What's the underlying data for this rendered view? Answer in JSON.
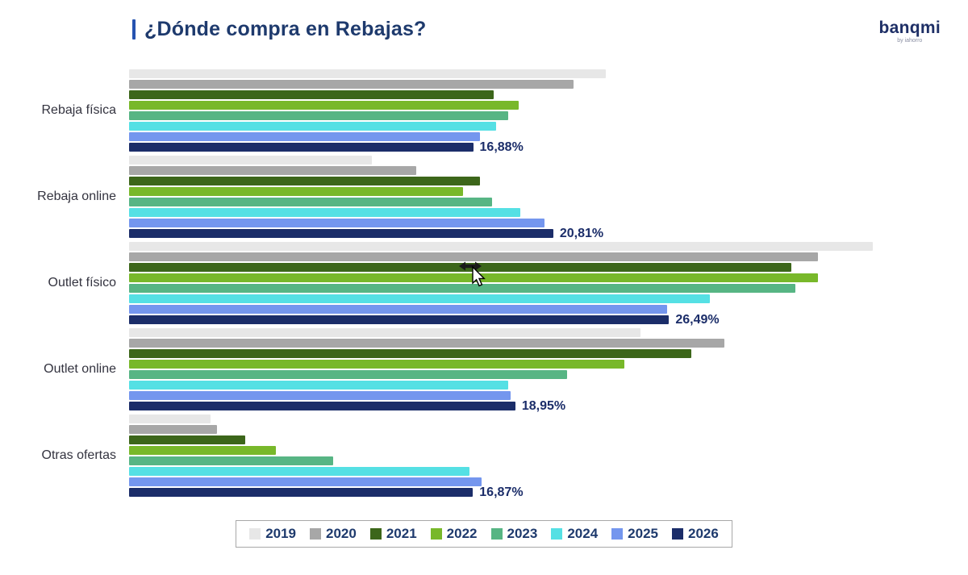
{
  "header": {
    "title": "¿Dónde compra en Rebajas?"
  },
  "logo": {
    "brand": "banqmi",
    "tagline": "by iahorro"
  },
  "cursor": {
    "icon": "arrow-pointer-with-horizontal-resize-cursor"
  },
  "chart_data": {
    "type": "bar",
    "orientation": "horizontal",
    "title": "¿Dónde compra en Rebajas?",
    "xlabel": "",
    "ylabel": "",
    "xlim": [
      0,
      37.2
    ],
    "grid": false,
    "legend_position": "bottom",
    "categories": [
      "Rebaja física",
      "Rebaja online",
      "Outlet físico",
      "Outlet online",
      "Otras ofertas"
    ],
    "series": [
      {
        "name": "2019",
        "color": "#e7e7e7",
        "values": [
          23.4,
          11.9,
          36.5,
          25.1,
          4.0
        ]
      },
      {
        "name": "2020",
        "color": "#a7a7a7",
        "values": [
          21.8,
          14.1,
          33.8,
          29.2,
          4.3
        ]
      },
      {
        "name": "2021",
        "color": "#3c661a",
        "values": [
          17.9,
          17.2,
          32.5,
          27.6,
          5.7
        ]
      },
      {
        "name": "2022",
        "color": "#78b82a",
        "values": [
          19.1,
          16.4,
          33.8,
          24.3,
          7.2
        ]
      },
      {
        "name": "2023",
        "color": "#57b584",
        "values": [
          18.6,
          17.8,
          32.7,
          21.5,
          10.0
        ]
      },
      {
        "name": "2024",
        "color": "#55e0e4",
        "values": [
          18.0,
          19.2,
          28.5,
          18.6,
          16.7
        ]
      },
      {
        "name": "2025",
        "color": "#7496ee",
        "values": [
          17.2,
          20.4,
          26.4,
          18.7,
          17.3
        ]
      },
      {
        "name": "2026",
        "color": "#1b2d69",
        "values": [
          16.88,
          20.81,
          26.49,
          18.95,
          16.87
        ]
      }
    ],
    "value_labels": {
      "series": "2026",
      "texts": [
        "16,88%",
        "20,81%",
        "26,49%",
        "18,95%",
        "16,87%"
      ]
    }
  }
}
